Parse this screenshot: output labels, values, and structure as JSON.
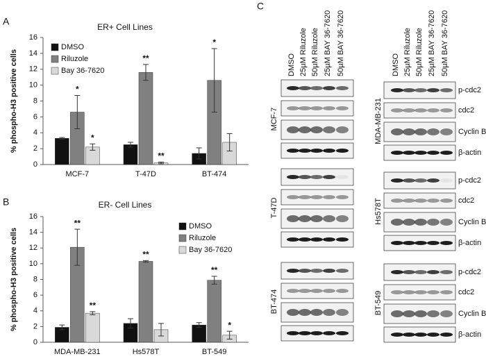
{
  "chart_data": [
    {
      "type": "bar",
      "panel_label": "A",
      "title": "ER+ Cell Lines",
      "y_label": "% phospho-H3 positive cells",
      "categories": [
        "MCF-7",
        "T-47D",
        "BT-474"
      ],
      "series": [
        {
          "name": "DMSO",
          "color": "#111111",
          "values": [
            3.3,
            2.5,
            1.4
          ],
          "errors": [
            0.1,
            0.3,
            0.7
          ],
          "annotations": [
            null,
            null,
            null
          ]
        },
        {
          "name": "Riluzole",
          "color": "#808080",
          "values": [
            6.6,
            11.6,
            10.6
          ],
          "errors": [
            2.1,
            1.0,
            4.0
          ],
          "annotations": [
            "*",
            "**",
            "*"
          ]
        },
        {
          "name": "Bay 36-7620",
          "color": "#d9d9d9",
          "values": [
            2.2,
            0.2,
            2.8
          ],
          "errors": [
            0.4,
            0.1,
            1.1
          ],
          "annotations": [
            "*",
            "**",
            null
          ]
        }
      ],
      "ylim": [
        0,
        16
      ],
      "yticks": [
        0,
        2,
        4,
        6,
        8,
        10,
        12,
        14,
        16
      ],
      "legend": "top-left"
    },
    {
      "type": "bar",
      "panel_label": "B",
      "title": "ER- Cell Lines",
      "y_label": "% phospho-H3 positive cells",
      "categories": [
        "MDA-MB-231",
        "Hs578T",
        "BT-549"
      ],
      "series": [
        {
          "name": "DMSO",
          "color": "#111111",
          "values": [
            1.9,
            2.4,
            2.2
          ],
          "errors": [
            0.3,
            0.6,
            0.3
          ],
          "annotations": [
            null,
            null,
            null
          ]
        },
        {
          "name": "Riluzole",
          "color": "#808080",
          "values": [
            12.1,
            10.3,
            7.9
          ],
          "errors": [
            2.3,
            0.1,
            0.5
          ],
          "annotations": [
            "**",
            "**",
            "**"
          ]
        },
        {
          "name": "Bay 36-7620",
          "color": "#d9d9d9",
          "values": [
            3.7,
            1.6,
            0.9
          ],
          "errors": [
            0.2,
            0.8,
            0.5
          ],
          "annotations": [
            "**",
            null,
            "*"
          ]
        }
      ],
      "ylim": [
        0,
        16
      ],
      "yticks": [
        0,
        2,
        4,
        6,
        8,
        10,
        12,
        14,
        16
      ],
      "legend": "top-right"
    }
  ],
  "blots": {
    "panel_label": "C",
    "lanes": [
      "DMSO",
      "25µM Riluzole",
      "50µM Riluzole",
      "25µM BAY 36-7620",
      "50µM BAY 36-7620"
    ],
    "left_groups": [
      "MCF-7",
      "T-47D",
      "BT-474"
    ],
    "right_groups": [
      "MDA-MB-231",
      "Hs578T",
      "BT-549"
    ],
    "proteins": [
      "p-cdc2",
      "cdc2",
      "Cyclin B",
      "β-actin"
    ]
  }
}
